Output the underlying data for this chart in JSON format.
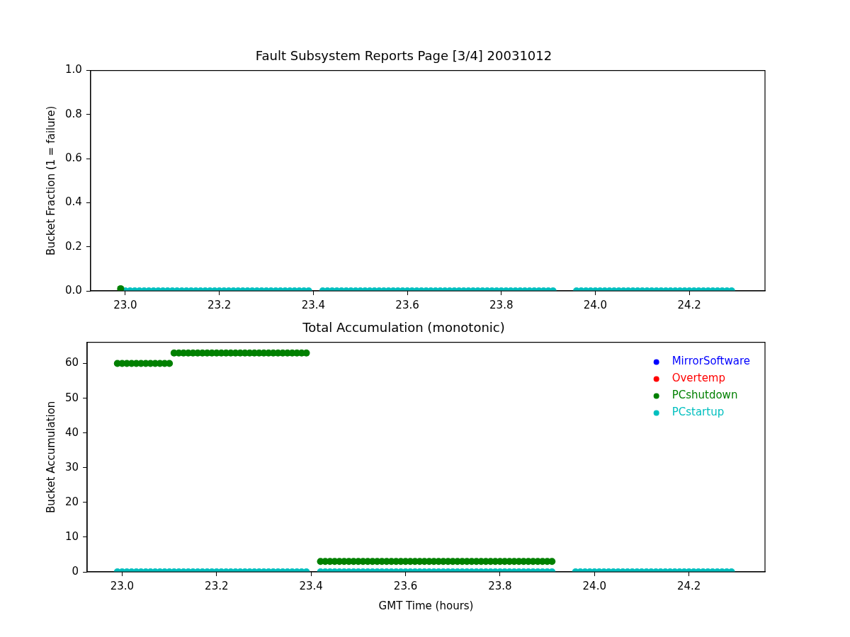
{
  "chart_data": [
    {
      "type": "scatter",
      "title": "Fault Subsystem Reports Page [3/4] 20031012",
      "ylabel": "Bucket Fraction (1 = failure)",
      "marker": "circle",
      "grid": false,
      "legend": false,
      "xlim": [
        22.926,
        24.361
      ],
      "xticks": [
        {
          "value": 23,
          "label": "23.0"
        },
        {
          "value": 23.2,
          "label": "23.2"
        },
        {
          "value": 23.4,
          "label": "23.4"
        },
        {
          "value": 23.6,
          "label": "23.6"
        },
        {
          "value": 23.8,
          "label": "23.8"
        },
        {
          "value": 24,
          "label": "24.0"
        },
        {
          "value": 24.2,
          "label": "24.2"
        }
      ],
      "ylim": [
        0,
        1
      ],
      "yticks": [
        {
          "value": 0,
          "label": "0.0"
        },
        {
          "value": 0.2,
          "label": "0.2"
        },
        {
          "value": 0.4,
          "label": "0.4"
        },
        {
          "value": 0.6,
          "label": "0.6"
        },
        {
          "value": 0.8,
          "label": "0.8"
        },
        {
          "value": 1,
          "label": "1.0"
        }
      ],
      "series": [
        {
          "color": "#008000",
          "x": [
            22.99
          ],
          "values": [
            0.01
          ]
        },
        {
          "color": "#00bfbf",
          "x": [
            23.0,
            23.01,
            23.02,
            23.03,
            23.04,
            23.05,
            23.06,
            23.07,
            23.08,
            23.09,
            23.1,
            23.11,
            23.12,
            23.13,
            23.14,
            23.15,
            23.16,
            23.17,
            23.18,
            23.19,
            23.2,
            23.21,
            23.22,
            23.23,
            23.24,
            23.25,
            23.26,
            23.27,
            23.28,
            23.29,
            23.3,
            23.31,
            23.32,
            23.33,
            23.34,
            23.35,
            23.36,
            23.37,
            23.38,
            23.39,
            23.42,
            23.43,
            23.44,
            23.45,
            23.46,
            23.47,
            23.48,
            23.49,
            23.5,
            23.51,
            23.52,
            23.53,
            23.54,
            23.55,
            23.56,
            23.57,
            23.58,
            23.59,
            23.6,
            23.61,
            23.62,
            23.63,
            23.64,
            23.65,
            23.66,
            23.67,
            23.68,
            23.69,
            23.7,
            23.71,
            23.72,
            23.73,
            23.74,
            23.75,
            23.76,
            23.77,
            23.78,
            23.79,
            23.8,
            23.81,
            23.82,
            23.83,
            23.84,
            23.85,
            23.86,
            23.87,
            23.88,
            23.89,
            23.9,
            23.91,
            23.96,
            23.97,
            23.98,
            23.99,
            24.0,
            24.01,
            24.02,
            24.03,
            24.04,
            24.05,
            24.06,
            24.07,
            24.08,
            24.09,
            24.1,
            24.11,
            24.12,
            24.13,
            24.14,
            24.15,
            24.16,
            24.17,
            24.18,
            24.19,
            24.2,
            24.21,
            24.22,
            24.23,
            24.24,
            24.25,
            24.26,
            24.27,
            24.28,
            24.29
          ],
          "values": [
            0,
            0,
            0,
            0,
            0,
            0,
            0,
            0,
            0,
            0,
            0,
            0,
            0,
            0,
            0,
            0,
            0,
            0,
            0,
            0,
            0,
            0,
            0,
            0,
            0,
            0,
            0,
            0,
            0,
            0,
            0,
            0,
            0,
            0,
            0,
            0,
            0,
            0,
            0,
            0,
            0,
            0,
            0,
            0,
            0,
            0,
            0,
            0,
            0,
            0,
            0,
            0,
            0,
            0,
            0,
            0,
            0,
            0,
            0,
            0,
            0,
            0,
            0,
            0,
            0,
            0,
            0,
            0,
            0,
            0,
            0,
            0,
            0,
            0,
            0,
            0,
            0,
            0,
            0,
            0,
            0,
            0,
            0,
            0,
            0,
            0,
            0,
            0,
            0,
            0,
            0,
            0,
            0,
            0,
            0,
            0,
            0,
            0,
            0,
            0,
            0,
            0,
            0,
            0,
            0,
            0,
            0,
            0,
            0,
            0,
            0,
            0,
            0,
            0,
            0,
            0,
            0,
            0,
            0,
            0,
            0,
            0,
            0,
            0
          ]
        }
      ]
    },
    {
      "type": "scatter",
      "title": "Total Accumulation (monotonic)",
      "xlabel": "GMT Time (hours)",
      "ylabel": "Bucket Accumulation",
      "marker": "circle",
      "grid": false,
      "legend": "top right",
      "xlim": [
        22.926,
        24.361
      ],
      "xticks": [
        {
          "value": 23,
          "label": "23.0"
        },
        {
          "value": 23.2,
          "label": "23.2"
        },
        {
          "value": 23.4,
          "label": "23.4"
        },
        {
          "value": 23.6,
          "label": "23.6"
        },
        {
          "value": 23.8,
          "label": "23.8"
        },
        {
          "value": 24,
          "label": "24.0"
        },
        {
          "value": 24.2,
          "label": "24.2"
        }
      ],
      "ylim": [
        0,
        66.1
      ],
      "yticks": [
        0,
        10,
        20,
        30,
        40,
        50,
        60
      ],
      "series": [
        {
          "name": "MirrorSoftware",
          "color": "#0000ff"
        },
        {
          "name": "Overtemp",
          "color": "#ff0000"
        },
        {
          "name": "PCshutdown",
          "color": "#008000",
          "x": [
            22.99,
            23.0,
            23.01,
            23.02,
            23.03,
            23.04,
            23.05,
            23.06,
            23.07,
            23.08,
            23.09,
            23.1,
            23.11,
            23.12,
            23.13,
            23.14,
            23.15,
            23.16,
            23.17,
            23.18,
            23.19,
            23.2,
            23.21,
            23.22,
            23.23,
            23.24,
            23.25,
            23.26,
            23.27,
            23.28,
            23.29,
            23.3,
            23.31,
            23.32,
            23.33,
            23.34,
            23.35,
            23.36,
            23.37,
            23.38,
            23.39,
            23.42,
            23.43,
            23.44,
            23.45,
            23.46,
            23.47,
            23.48,
            23.49,
            23.5,
            23.51,
            23.52,
            23.53,
            23.54,
            23.55,
            23.56,
            23.57,
            23.58,
            23.59,
            23.6,
            23.61,
            23.62,
            23.63,
            23.64,
            23.65,
            23.66,
            23.67,
            23.68,
            23.69,
            23.7,
            23.71,
            23.72,
            23.73,
            23.74,
            23.75,
            23.76,
            23.77,
            23.78,
            23.79,
            23.8,
            23.81,
            23.82,
            23.83,
            23.84,
            23.85,
            23.86,
            23.87,
            23.88,
            23.89,
            23.9,
            23.91
          ],
          "values": [
            60,
            60,
            60,
            60,
            60,
            60,
            60,
            60,
            60,
            60,
            60,
            60,
            63,
            63,
            63,
            63,
            63,
            63,
            63,
            63,
            63,
            63,
            63,
            63,
            63,
            63,
            63,
            63,
            63,
            63,
            63,
            63,
            63,
            63,
            63,
            63,
            63,
            63,
            63,
            63,
            63,
            3,
            3,
            3,
            3,
            3,
            3,
            3,
            3,
            3,
            3,
            3,
            3,
            3,
            3,
            3,
            3,
            3,
            3,
            3,
            3,
            3,
            3,
            3,
            3,
            3,
            3,
            3,
            3,
            3,
            3,
            3,
            3,
            3,
            3,
            3,
            3,
            3,
            3,
            3,
            3,
            3,
            3,
            3,
            3,
            3,
            3,
            3,
            3,
            3,
            3
          ]
        },
        {
          "name": "PCstartup",
          "color": "#00bfbf",
          "x": [
            22.99,
            23.0,
            23.01,
            23.02,
            23.03,
            23.04,
            23.05,
            23.06,
            23.07,
            23.08,
            23.09,
            23.1,
            23.11,
            23.12,
            23.13,
            23.14,
            23.15,
            23.16,
            23.17,
            23.18,
            23.19,
            23.2,
            23.21,
            23.22,
            23.23,
            23.24,
            23.25,
            23.26,
            23.27,
            23.28,
            23.29,
            23.3,
            23.31,
            23.32,
            23.33,
            23.34,
            23.35,
            23.36,
            23.37,
            23.38,
            23.39,
            23.42,
            23.43,
            23.44,
            23.45,
            23.46,
            23.47,
            23.48,
            23.49,
            23.5,
            23.51,
            23.52,
            23.53,
            23.54,
            23.55,
            23.56,
            23.57,
            23.58,
            23.59,
            23.6,
            23.61,
            23.62,
            23.63,
            23.64,
            23.65,
            23.66,
            23.67,
            23.68,
            23.69,
            23.7,
            23.71,
            23.72,
            23.73,
            23.74,
            23.75,
            23.76,
            23.77,
            23.78,
            23.79,
            23.8,
            23.81,
            23.82,
            23.83,
            23.84,
            23.85,
            23.86,
            23.87,
            23.88,
            23.89,
            23.9,
            23.91,
            23.96,
            23.97,
            23.98,
            23.99,
            24.0,
            24.01,
            24.02,
            24.03,
            24.04,
            24.05,
            24.06,
            24.07,
            24.08,
            24.09,
            24.1,
            24.11,
            24.12,
            24.13,
            24.14,
            24.15,
            24.16,
            24.17,
            24.18,
            24.19,
            24.2,
            24.21,
            24.22,
            24.23,
            24.24,
            24.25,
            24.26,
            24.27,
            24.28,
            24.29
          ],
          "values": [
            0,
            0,
            0,
            0,
            0,
            0,
            0,
            0,
            0,
            0,
            0,
            0,
            0,
            0,
            0,
            0,
            0,
            0,
            0,
            0,
            0,
            0,
            0,
            0,
            0,
            0,
            0,
            0,
            0,
            0,
            0,
            0,
            0,
            0,
            0,
            0,
            0,
            0,
            0,
            0,
            0,
            0,
            0,
            0,
            0,
            0,
            0,
            0,
            0,
            0,
            0,
            0,
            0,
            0,
            0,
            0,
            0,
            0,
            0,
            0,
            0,
            0,
            0,
            0,
            0,
            0,
            0,
            0,
            0,
            0,
            0,
            0,
            0,
            0,
            0,
            0,
            0,
            0,
            0,
            0,
            0,
            0,
            0,
            0,
            0,
            0,
            0,
            0,
            0,
            0,
            0,
            0,
            0,
            0,
            0,
            0,
            0,
            0,
            0,
            0,
            0,
            0,
            0,
            0,
            0,
            0,
            0,
            0,
            0,
            0,
            0,
            0,
            0,
            0,
            0,
            0,
            0,
            0,
            0,
            0,
            0,
            0,
            0,
            0,
            0
          ]
        }
      ]
    }
  ]
}
